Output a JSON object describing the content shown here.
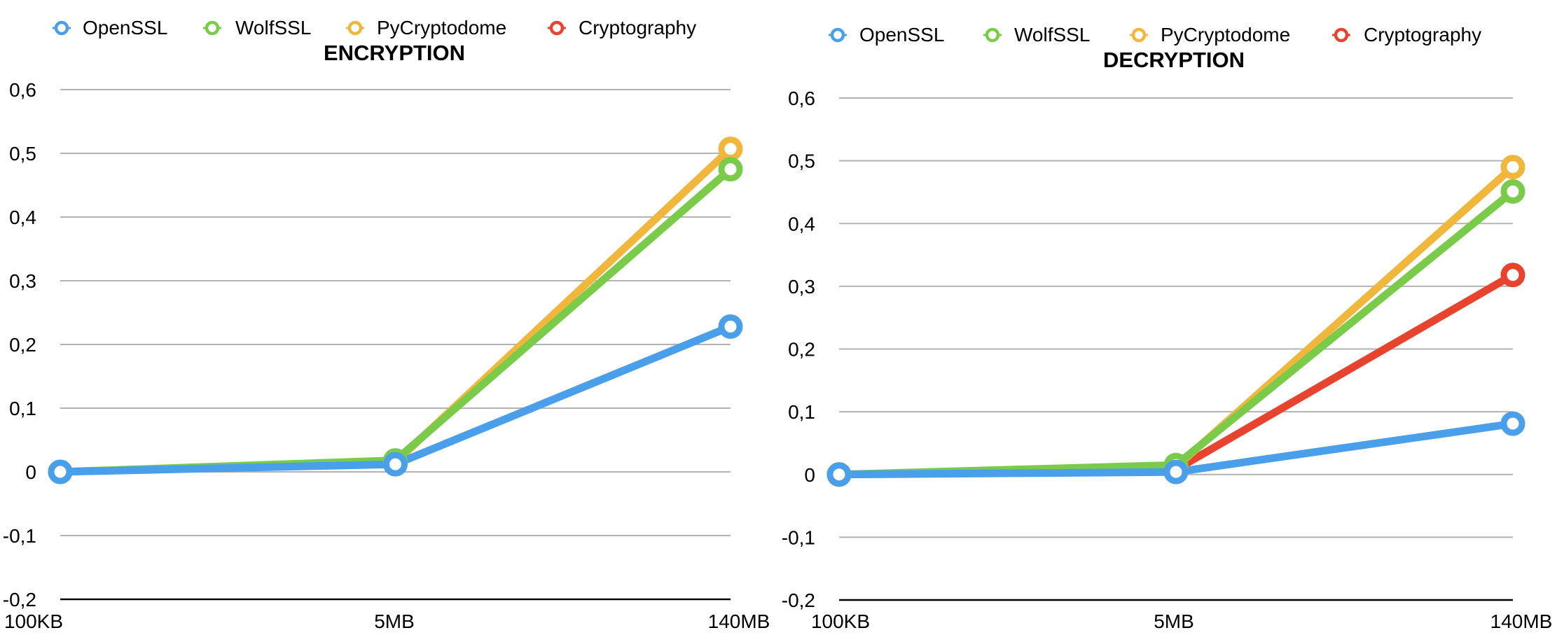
{
  "chart_data": [
    {
      "type": "line",
      "title": "ENCRYPTION",
      "xlabel": "",
      "ylabel": "",
      "categories": [
        "100KB",
        "5MB",
        "140MB"
      ],
      "ylim": [
        -0.2,
        0.6
      ],
      "yticks": [
        "0,6",
        "0,5",
        "0,4",
        "0,3",
        "0,2",
        "0,1",
        "0",
        "-0,1",
        "-0,2"
      ],
      "ytick_values": [
        0.6,
        0.5,
        0.4,
        0.3,
        0.2,
        0.1,
        0,
        -0.1,
        -0.2
      ],
      "grid": true,
      "legend": "top",
      "series": [
        {
          "name": "OpenSSL",
          "color": "#4A9FEA",
          "values": [
            0.0,
            0.012,
            0.228
          ]
        },
        {
          "name": "WolfSSL",
          "color": "#7ACB4A",
          "values": [
            0.0,
            0.018,
            0.475
          ]
        },
        {
          "name": "PyCryptodome",
          "color": "#F0B73C",
          "values": [
            0.0,
            0.015,
            0.507
          ]
        },
        {
          "name": "Cryptography",
          "color": "#E8432E",
          "values": [
            0.0,
            0.012,
            0.476
          ]
        }
      ],
      "draw_order": [
        3,
        2,
        1,
        0
      ],
      "marker_series": [
        true,
        true,
        true,
        false
      ]
    },
    {
      "type": "line",
      "title": "DECRYPTION",
      "xlabel": "",
      "ylabel": "",
      "categories": [
        "100KB",
        "5MB",
        "140MB"
      ],
      "ylim": [
        -0.2,
        0.6
      ],
      "yticks": [
        "0,6",
        "0,5",
        "0,4",
        "0,3",
        "0,2",
        "0,1",
        "0",
        "-0,1",
        "-0,2"
      ],
      "ytick_values": [
        0.6,
        0.5,
        0.4,
        0.3,
        0.2,
        0.1,
        0,
        -0.1,
        -0.2
      ],
      "grid": true,
      "legend": "top",
      "series": [
        {
          "name": "OpenSSL",
          "color": "#4A9FEA",
          "values": [
            0.0,
            0.004,
            0.081
          ]
        },
        {
          "name": "WolfSSL",
          "color": "#7ACB4A",
          "values": [
            0.0,
            0.015,
            0.451
          ]
        },
        {
          "name": "PyCryptodome",
          "color": "#F0B73C",
          "values": [
            0.0,
            0.012,
            0.49
          ]
        },
        {
          "name": "Cryptography",
          "color": "#E8432E",
          "values": [
            0.0,
            0.008,
            0.318
          ]
        }
      ],
      "draw_order": [
        3,
        2,
        1,
        0
      ],
      "marker_series": [
        true,
        true,
        true,
        true
      ]
    }
  ]
}
